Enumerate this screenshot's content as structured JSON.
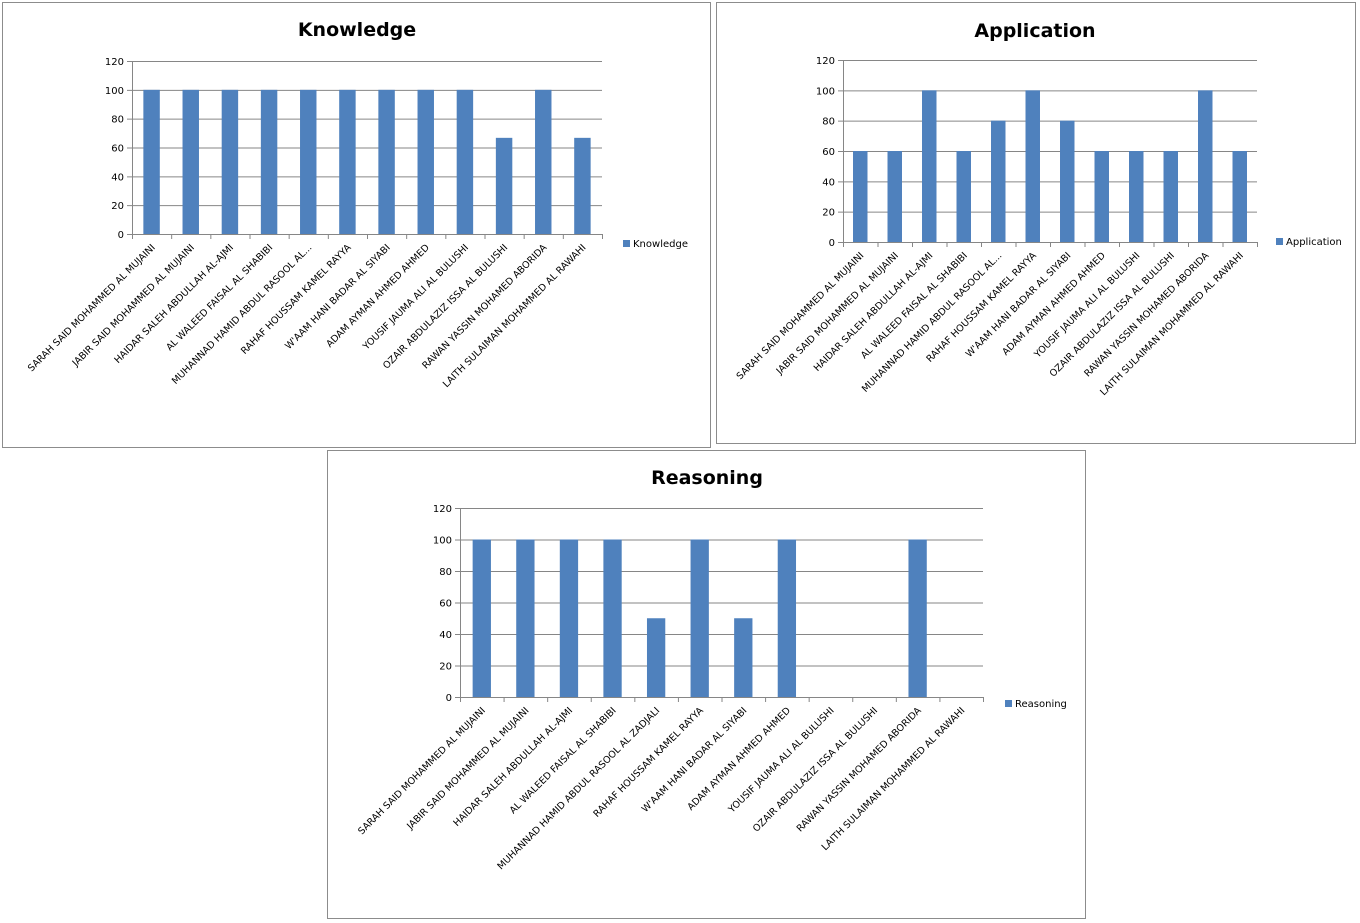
{
  "colors": {
    "bar": "#4f81bd",
    "grid": "#868686",
    "axis": "#868686"
  },
  "chart_data": [
    {
      "type": "bar",
      "title": "Knowledge",
      "legend": "Knowledge",
      "legend_position": "right",
      "ylim": [
        0,
        120
      ],
      "yticks": [
        0,
        20,
        40,
        60,
        80,
        100,
        120
      ],
      "grid": true,
      "categories": [
        "SARAH SAID MOHAMMED AL MUJAINI",
        "JABIR SAID MOHAMMED AL MUJAINI",
        "HAIDAR SALEH ABDULLAH AL-AJMI",
        "AL WALEED FAISAL AL SHABIBI",
        "MUHANNAD HAMID ABDUL RASOOL AL...",
        "RAHAF HOUSSAM KAMEL RAYYA",
        "W'AAM HANI BADAR AL SIYABI",
        "ADAM AYMAN AHMED AHMED",
        "YOUSIF JAUMA ALI AL BULUSHI",
        "OZAIR ABDULAZIZ ISSA AL BULUSHI",
        "RAWAN YASSIN MOHAMED ABORIDA",
        "LAITH SULAIMAN MOHAMMED AL RAWAHI"
      ],
      "values": [
        100,
        100,
        100,
        100,
        100,
        100,
        100,
        100,
        100,
        66.7,
        100,
        66.7
      ]
    },
    {
      "type": "bar",
      "title": "Application",
      "legend": "Application",
      "legend_position": "right",
      "ylim": [
        0,
        120
      ],
      "yticks": [
        0,
        20,
        40,
        60,
        80,
        100,
        120
      ],
      "grid": true,
      "categories": [
        "SARAH SAID MOHAMMED AL MUJAINI",
        "JABIR SAID MOHAMMED AL MUJAINI",
        "HAIDAR SALEH ABDULLAH AL-AJMI",
        "AL WALEED FAISAL AL SHABIBI",
        "MUHANNAD HAMID ABDUL RASOOL AL...",
        "RAHAF HOUSSAM KAMEL RAYYA",
        "W'AAM HANI BADAR AL SIYABI",
        "ADAM AYMAN AHMED AHMED",
        "YOUSIF JAUMA ALI AL BULUSHI",
        "OZAIR ABDULAZIZ ISSA AL BULUSHI",
        "RAWAN YASSIN MOHAMED ABORIDA",
        "LAITH SULAIMAN MOHAMMED AL RAWAHI"
      ],
      "values": [
        60,
        60,
        100,
        60,
        80,
        100,
        80,
        60,
        60,
        60,
        100,
        60
      ]
    },
    {
      "type": "bar",
      "title": "Reasoning",
      "legend": "Reasoning",
      "legend_position": "right",
      "ylim": [
        0,
        120
      ],
      "yticks": [
        0,
        20,
        40,
        60,
        80,
        100,
        120
      ],
      "grid": true,
      "categories": [
        "SARAH SAID MOHAMMED AL MUJAINI",
        "JABIR SAID MOHAMMED AL MUJAINI",
        "HAIDAR SALEH ABDULLAH AL-AJMI",
        "AL WALEED FAISAL AL SHABIBI",
        "MUHANNAD HAMID ABDUL RASOOL AL ZADJALI",
        "RAHAF HOUSSAM KAMEL RAYYA",
        "W'AAM HANI BADAR AL SIYABI",
        "ADAM AYMAN AHMED AHMED",
        "YOUSIF JAUMA ALI AL BULUSHI",
        "OZAIR ABDULAZIZ ISSA AL BULUSHI",
        "RAWAN YASSIN MOHAMED ABORIDA",
        "LAITH SULAIMAN MOHAMMED AL RAWAHI"
      ],
      "values": [
        100,
        100,
        100,
        100,
        50,
        100,
        50,
        100,
        0,
        0,
        100,
        0
      ]
    }
  ]
}
